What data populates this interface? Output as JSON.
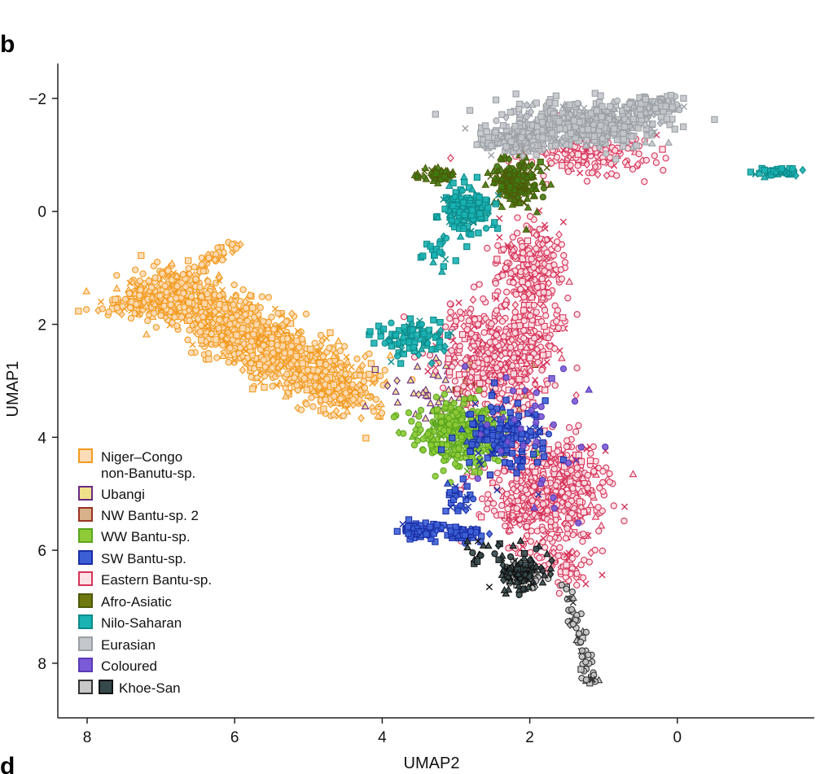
{
  "panel_label_top": "b",
  "panel_label_bottom": "d",
  "chart_data": {
    "type": "scatter",
    "title": "",
    "xlabel": "UMAP2",
    "ylabel": "UMAP1",
    "x_reversed": true,
    "y_reversed": true,
    "xlim": [
      8.3,
      -1.8
    ],
    "ylim": [
      -2.5,
      8.8
    ],
    "x_ticks": [
      8,
      6,
      4,
      2,
      0
    ],
    "x_tick_labels": [
      "8",
      "6",
      "4",
      "2",
      "0"
    ],
    "y_ticks": [
      -2,
      0,
      2,
      4,
      6,
      8
    ],
    "y_tick_labels": [
      "−2",
      "0",
      "2",
      "4",
      "6",
      "8"
    ],
    "legend": [
      {
        "label": "Niger–Congo",
        "label2": "non-Banutu-sp.",
        "fill": "#fbdcb6",
        "stroke": "#f29a1f"
      },
      {
        "label": "Ubangi",
        "fill": "#efe08c",
        "stroke": "#6a2a82"
      },
      {
        "label": "NW Bantu-sp. 2",
        "fill": "#d8b08a",
        "stroke": "#9b3223"
      },
      {
        "label": "WW Bantu-sp.",
        "fill": "#8ecb36",
        "stroke": "#5aa51e"
      },
      {
        "label": "SW Bantu-sp.",
        "fill": "#3c5fd6",
        "stroke": "#1a2fa6"
      },
      {
        "label": "Eastern Bantu-sp.",
        "fill": "#fbe1e6",
        "stroke": "#d6335a"
      },
      {
        "label": "Afro-Asiatic",
        "fill": "#6e7a10",
        "stroke": "#4e5a08"
      },
      {
        "label": "Nilo-Saharan",
        "fill": "#1ab3b3",
        "stroke": "#0e8a8a"
      },
      {
        "label": "Eurasian",
        "fill": "#c4c7cb",
        "stroke": "#9aa0a6"
      },
      {
        "label": "Coloured",
        "fill": "#7a5ad6",
        "stroke": "#5a3ab6"
      },
      {
        "label": "Khoe-San",
        "fill": "#c8c8c8",
        "stroke": "#333333",
        "fill2": "#35484a",
        "stroke2": "#111111"
      }
    ],
    "series": [
      {
        "name": "Niger–Congo non-Banutu-sp.",
        "color": "#f29a1f",
        "fill": "#fbdcb6",
        "marker": "circle",
        "clusters": [
          {
            "x": [
              7.0,
              4.4
            ],
            "y": [
              1.3,
              3.3
            ],
            "n": 1300,
            "sd": 0.3,
            "path": true
          },
          {
            "x": [
              6.8,
              6.0
            ],
            "y": [
              1.3,
              0.55
            ],
            "n": 70,
            "sd": 0.07,
            "path": true
          },
          {
            "cx": 7.25,
            "cy": 1.6,
            "rx": 0.5,
            "ry": 0.22,
            "n": 130
          }
        ]
      },
      {
        "name": "Ubangi",
        "color": "#6a2a82",
        "fill": "#efe08c",
        "marker": "triangle",
        "clusters": [
          {
            "cx": 3.3,
            "cy": 3.1,
            "rx": 0.6,
            "ry": 0.6,
            "n": 40
          }
        ]
      },
      {
        "name": "NW Bantu-sp. 2",
        "color": "#9b3223",
        "fill": "#d8b08a",
        "marker": "square",
        "clusters": [
          {
            "cx": 2.7,
            "cy": 3.3,
            "rx": 0.5,
            "ry": 0.7,
            "n": 30
          }
        ]
      },
      {
        "name": "Eastern Bantu-sp.",
        "color": "#d6335a",
        "fill": "#fbe1e6",
        "marker": "circle",
        "clusters": [
          {
            "cx": 2.4,
            "cy": 2.5,
            "rx": 0.7,
            "ry": 0.9,
            "n": 520
          },
          {
            "cx": 1.75,
            "cy": 5.0,
            "rx": 0.7,
            "ry": 0.85,
            "n": 650
          },
          {
            "cx": 2.0,
            "cy": 1.0,
            "rx": 0.38,
            "ry": 0.75,
            "n": 260
          },
          {
            "cx": 1.3,
            "cy": -1.0,
            "rx": 0.85,
            "ry": 0.4,
            "n": 170
          },
          {
            "cx": 1.5,
            "cy": 6.3,
            "rx": 0.35,
            "ry": 0.35,
            "n": 60
          }
        ]
      },
      {
        "name": "WW Bantu-sp.",
        "color": "#5aa51e",
        "fill": "#8ecb36",
        "marker": "circle",
        "clusters": [
          {
            "cx": 2.95,
            "cy": 3.95,
            "rx": 0.55,
            "ry": 0.5,
            "n": 330
          }
        ]
      },
      {
        "name": "SW Bantu-sp.",
        "color": "#1a2fa6",
        "fill": "#3c5fd6",
        "marker": "square",
        "clusters": [
          {
            "cx": 2.35,
            "cy": 4.0,
            "rx": 0.5,
            "ry": 0.65,
            "n": 150
          },
          {
            "cx": 3.45,
            "cy": 5.65,
            "rx": 0.25,
            "ry": 0.12,
            "n": 60
          },
          {
            "cx": 2.9,
            "cy": 5.7,
            "rx": 0.22,
            "ry": 0.12,
            "n": 55
          },
          {
            "cx": 2.95,
            "cy": 5.1,
            "rx": 0.2,
            "ry": 0.3,
            "n": 25
          }
        ]
      },
      {
        "name": "Afro-Asiatic",
        "color": "#4e5a08",
        "fill": "#3d7a12",
        "marker": "triangle",
        "clusters": [
          {
            "cx": 2.2,
            "cy": -0.55,
            "rx": 0.3,
            "ry": 0.4,
            "n": 200
          },
          {
            "cx": 3.3,
            "cy": -0.65,
            "rx": 0.25,
            "ry": 0.1,
            "n": 45
          }
        ]
      },
      {
        "name": "Nilo-Saharan",
        "color": "#0e8a8a",
        "fill": "#1ab3b3",
        "marker": "square",
        "clusters": [
          {
            "cx": 2.85,
            "cy": -0.05,
            "rx": 0.3,
            "ry": 0.35,
            "n": 170
          },
          {
            "cx": 3.6,
            "cy": 2.25,
            "rx": 0.45,
            "ry": 0.35,
            "n": 90
          },
          {
            "cx": 3.2,
            "cy": 0.7,
            "rx": 0.3,
            "ry": 0.3,
            "n": 22
          },
          {
            "cx": -1.35,
            "cy": -0.7,
            "rx": 0.25,
            "ry": 0.06,
            "n": 45
          }
        ]
      },
      {
        "name": "Eurasian",
        "color": "#9aa0a6",
        "fill": "#c4c7cb",
        "marker": "square",
        "clusters": [
          {
            "cx": 1.3,
            "cy": -1.55,
            "rx": 1.0,
            "ry": 0.35,
            "n": 520
          },
          {
            "cx": 0.3,
            "cy": -1.85,
            "rx": 0.3,
            "ry": 0.15,
            "n": 130
          },
          {
            "cx": 2.2,
            "cy": -1.25,
            "rx": 0.4,
            "ry": 0.2,
            "n": 120
          }
        ]
      },
      {
        "name": "Coloured",
        "color": "#5a3ab6",
        "fill": "#7a5ad6",
        "marker": "circle",
        "clusters": [
          {
            "cx": 1.9,
            "cy": 4.2,
            "rx": 0.9,
            "ry": 1.5,
            "n": 35
          }
        ]
      },
      {
        "name": "Khoe-San (grey)",
        "color": "#333333",
        "fill": "#c8c8c8",
        "marker": "circle",
        "clusters": [
          {
            "x": [
              1.5,
              1.15
            ],
            "y": [
              6.6,
              8.4
            ],
            "n": 60,
            "sd": 0.05,
            "path": true
          },
          {
            "cx": 2.05,
            "cy": 6.45,
            "rx": 0.25,
            "ry": 0.25,
            "n": 40
          }
        ]
      },
      {
        "name": "Khoe-San (dark)",
        "color": "#111111",
        "fill": "#35484a",
        "marker": "triangle",
        "clusters": [
          {
            "cx": 2.1,
            "cy": 6.4,
            "rx": 0.3,
            "ry": 0.35,
            "n": 90
          },
          {
            "cx": 2.6,
            "cy": 6.0,
            "rx": 0.35,
            "ry": 0.2,
            "n": 18
          }
        ]
      }
    ]
  }
}
